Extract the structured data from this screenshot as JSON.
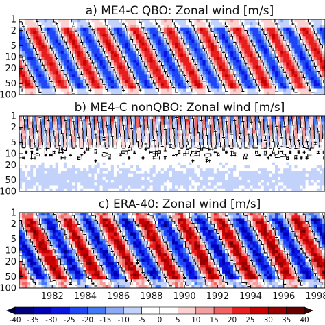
{
  "chart_data": [
    {
      "type": "heatmap",
      "title": "a) ME4-C QBO: Zonal wind [m/s]",
      "y_tick_labels": [
        "1",
        "2",
        "5",
        "10",
        "20",
        "50",
        "100"
      ],
      "y_scale": "log",
      "y_axis_reversed": true,
      "x_range": [
        1980,
        1998.5
      ],
      "descending_phases_per_panel": 9,
      "amplitude_ms": 25,
      "noise": "low"
    },
    {
      "type": "heatmap",
      "title": "b) ME4-C nonQBO: Zonal wind [m/s]",
      "y_tick_labels": [
        "1",
        "2",
        "5",
        "10",
        "20",
        "50",
        "100"
      ],
      "y_scale": "log",
      "y_axis_reversed": true,
      "x_range": [
        1980,
        1998.5
      ],
      "pattern": "semi-annual oscillation above ~10 hPa, weak easterlies below",
      "amplitude_ms": 20
    },
    {
      "type": "heatmap",
      "title": "c) ERA-40: Zonal wind [m/s]",
      "y_tick_labels": [
        "1",
        "2",
        "5",
        "10",
        "20",
        "50",
        "100"
      ],
      "y_scale": "log",
      "y_axis_reversed": true,
      "x_range": [
        1980,
        1998.5
      ],
      "x_tick_labels": [
        "1982",
        "1984",
        "1986",
        "1988",
        "1990",
        "1992",
        "1994",
        "1996",
        "1998"
      ],
      "descending_phases_per_panel": 8,
      "amplitude_ms": 30,
      "noise": "high"
    }
  ],
  "colorbar": {
    "labels": [
      "-40",
      "-35",
      "-30",
      "-25",
      "-20",
      "-15",
      "-10",
      "-5",
      "0",
      "5",
      "10",
      "15",
      "20",
      "25",
      "30",
      "35",
      "40"
    ],
    "levels": [
      -40,
      -35,
      -30,
      -25,
      -20,
      -15,
      -10,
      -5,
      0,
      5,
      10,
      15,
      20,
      25,
      30,
      35,
      40
    ],
    "colors": [
      "#00004a",
      "#00007a",
      "#0000b4",
      "#0a14e0",
      "#1e46f5",
      "#4178f5",
      "#8caaf5",
      "#c3d2fa",
      "#ffffff",
      "#ffffff",
      "#fad2d2",
      "#f5a0a0",
      "#f06464",
      "#e61e1e",
      "#c80000",
      "#960000",
      "#640000",
      "#3c0000"
    ],
    "note": "white band between -5 and 5 m/s; contour line at 0 m/s"
  }
}
